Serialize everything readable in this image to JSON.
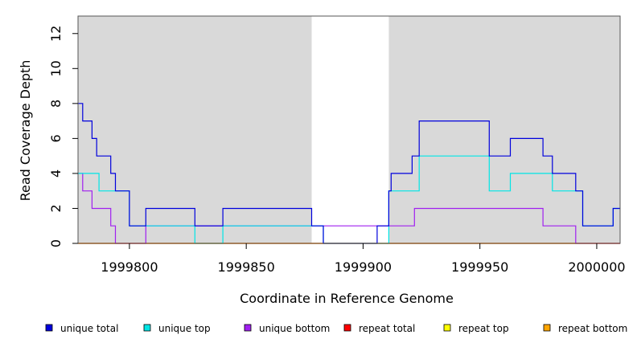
{
  "chart_data": {
    "type": "line",
    "title": "",
    "xlabel": "Coordinate in Reference Genome",
    "ylabel": "Read Coverage Depth",
    "xlim": [
      1999778,
      2000010
    ],
    "ylim": [
      0,
      13
    ],
    "xticks": [
      1999800,
      1999850,
      1999900,
      1999950,
      2000000
    ],
    "xtick_labels": [
      "1999800",
      "1999850",
      "1999900",
      "1999950",
      "2000000"
    ],
    "yticks": [
      0,
      2,
      4,
      6,
      8,
      10,
      12
    ],
    "ytick_labels": [
      "0",
      "2",
      "4",
      "6",
      "8",
      "10",
      "12"
    ],
    "grid": false,
    "shaded_regions": [
      {
        "x0": 1999778,
        "x1": 1999878,
        "color": "#d9d9d9"
      },
      {
        "x0": 1999911,
        "x1": 2000010,
        "color": "#d9d9d9"
      }
    ],
    "legend_position": "bottom",
    "series": [
      {
        "name": "unique total",
        "color": "#0000dd",
        "x": [
          1999778,
          1999780,
          1999784,
          1999786,
          1999792,
          1999794,
          1999800,
          1999807,
          1999828,
          1999840,
          1999878,
          1999883,
          1999901,
          1999906,
          1999911,
          1999912,
          1999921,
          1999924,
          1999954,
          1999963,
          1999977,
          1999981,
          1999991,
          1999994,
          2000007,
          2000010
        ],
        "y": [
          8,
          7,
          6,
          5,
          4,
          3,
          1,
          2,
          1,
          2,
          1,
          0,
          0,
          1,
          3,
          4,
          5,
          7,
          5,
          6,
          5,
          4,
          3,
          1,
          2,
          2
        ]
      },
      {
        "name": "unique top",
        "color": "#00e5e5",
        "x": [
          1999778,
          1999780,
          1999787,
          1999793,
          1999800,
          1999828,
          1999840,
          1999878,
          1999883,
          1999911,
          1999924,
          1999954,
          1999963,
          1999981,
          1999994,
          2000007,
          2000010
        ],
        "y": [
          4,
          4,
          3,
          3,
          1,
          0,
          1,
          1,
          0,
          3,
          5,
          3,
          4,
          3,
          1,
          2,
          2
        ]
      },
      {
        "name": "unique bottom",
        "color": "#a020f0",
        "x": [
          1999778,
          1999780,
          1999784,
          1999792,
          1999794,
          1999807,
          1999878,
          1999911,
          1999922,
          1999977,
          1999991,
          2000010
        ],
        "y": [
          4,
          3,
          2,
          1,
          0,
          1,
          1,
          1,
          2,
          1,
          0,
          0
        ]
      },
      {
        "name": "repeat total",
        "color": "#ff0000",
        "x": [
          1999778,
          2000010
        ],
        "y": [
          0,
          0
        ]
      },
      {
        "name": "repeat top",
        "color": "#ffff00",
        "x": [
          1999778,
          2000010
        ],
        "y": [
          0,
          0
        ]
      },
      {
        "name": "repeat bottom",
        "color": "#ffa500",
        "x": [
          1999778,
          2000010
        ],
        "y": [
          0,
          0
        ]
      }
    ]
  }
}
